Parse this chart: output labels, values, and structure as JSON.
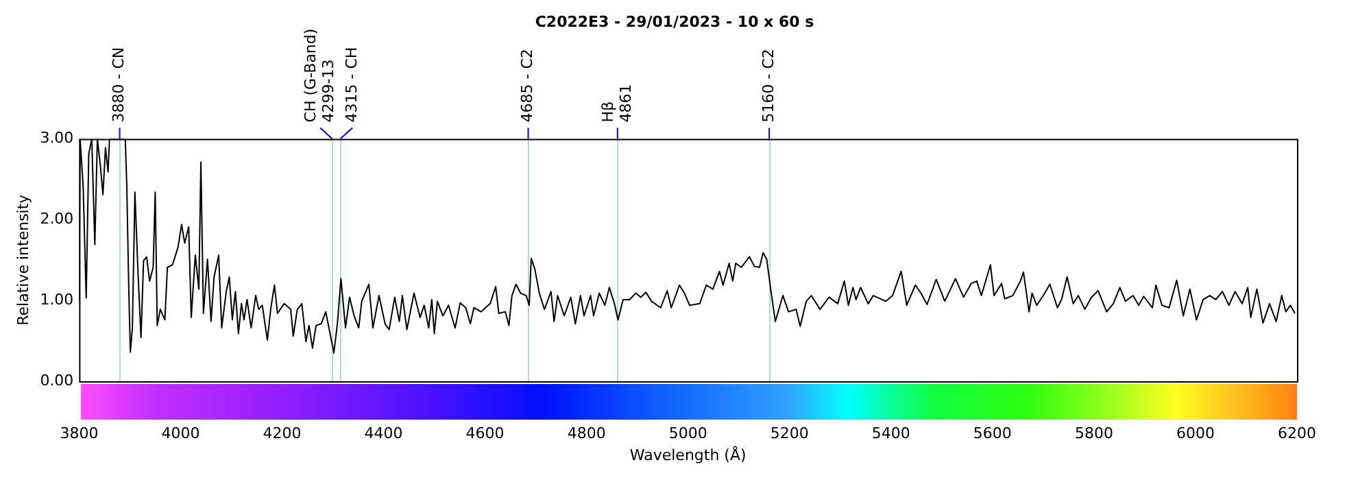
{
  "chart_data": {
    "type": "line",
    "title": "C2022E3 - 29/01/2023 - 10 x 60 s",
    "xlabel": "Wavelength (Å)",
    "ylabel": "Relative intensity",
    "xlim": [
      3800,
      6200
    ],
    "xticks": [
      3800,
      4000,
      4200,
      4400,
      4600,
      4800,
      5000,
      5200,
      5400,
      5600,
      5800,
      6000,
      6200
    ],
    "ylim": [
      0,
      3
    ],
    "yticks": [
      {
        "value": 0,
        "label": "0.00"
      },
      {
        "value": 1,
        "label": "1.00"
      },
      {
        "value": 2,
        "label": "2.00"
      },
      {
        "value": 3,
        "label": "3.00"
      }
    ],
    "grid": false,
    "legend": false,
    "ref_lines": [
      {
        "axis": "x",
        "value": 3880,
        "label": "3880 - CN",
        "color": "#add8e6"
      },
      {
        "axis": "x",
        "value": 4299,
        "label": "CH (G-Band)\n4299-13",
        "color": "#add8e6"
      },
      {
        "axis": "x",
        "value": 4315,
        "label": "4315 - CH",
        "color": "#add8e6"
      },
      {
        "axis": "x",
        "value": 4685,
        "label": "4685 - C2",
        "color": "#add8e6"
      },
      {
        "axis": "x",
        "value": 4861,
        "label": "Hβ\n4861",
        "color": "#add8e6"
      },
      {
        "axis": "x",
        "value": 5160,
        "label": "5160 - C2",
        "color": "#add8e6"
      }
    ],
    "series": [
      {
        "color": "#000000",
        "x": [
          3800,
          3802,
          3808,
          3814,
          3819,
          3825,
          3831,
          3836,
          3842,
          3847,
          3852,
          3857,
          3860,
          3891,
          3894,
          3898,
          3901,
          3905,
          3910,
          3916,
          3922,
          3927,
          3933,
          3939,
          3946,
          3950,
          3954,
          3960,
          3969,
          3974,
          3984,
          3995,
          4002,
          4008,
          4016,
          4021,
          4029,
          4036,
          4040,
          4045,
          4053,
          4060,
          4066,
          4075,
          4081,
          4090,
          4096,
          4102,
          4108,
          4114,
          4120,
          4125,
          4131,
          4139,
          4148,
          4154,
          4161,
          4171,
          4178,
          4185,
          4191,
          4204,
          4217,
          4222,
          4230,
          4239,
          4247,
          4253,
          4260,
          4267,
          4277,
          4286,
          4293,
          4302,
          4309,
          4316,
          4325,
          4333,
          4342,
          4351,
          4357,
          4371,
          4379,
          4391,
          4403,
          4411,
          4422,
          4431,
          4437,
          4446,
          4460,
          4472,
          4480,
          4489,
          4495,
          4500,
          4506,
          4517,
          4528,
          4541,
          4551,
          4562,
          4571,
          4578,
          4592,
          4610,
          4621,
          4627,
          4640,
          4647,
          4653,
          4661,
          4670,
          4681,
          4687,
          4691,
          4698,
          4707,
          4717,
          4730,
          4736,
          4743,
          4756,
          4769,
          4778,
          4788,
          4795,
          4808,
          4814,
          4825,
          4836,
          4845,
          4855,
          4862,
          4872,
          4885,
          4897,
          4907,
          4917,
          4928,
          4946,
          4959,
          4967,
          4983,
          4993,
          5003,
          5023,
          5036,
          5049,
          5062,
          5069,
          5081,
          5088,
          5094,
          5105,
          5121,
          5131,
          5141,
          5148,
          5155,
          5164,
          5172,
          5187,
          5198,
          5213,
          5221,
          5233,
          5243,
          5260,
          5278,
          5295,
          5308,
          5316,
          5325,
          5331,
          5340,
          5355,
          5365,
          5390,
          5403,
          5420,
          5431,
          5448,
          5459,
          5471,
          5489,
          5506,
          5527,
          5543,
          5558,
          5569,
          5578,
          5596,
          5603,
          5618,
          5624,
          5640,
          5655,
          5661,
          5672,
          5678,
          5687,
          5700,
          5713,
          5728,
          5736,
          5747,
          5759,
          5769,
          5782,
          5795,
          5808,
          5825,
          5838,
          5851,
          5862,
          5877,
          5888,
          5898,
          5915,
          5922,
          5934,
          5948,
          5963,
          5976,
          5989,
          6002,
          6015,
          6028,
          6040,
          6053,
          6066,
          6078,
          6092,
          6103,
          6109,
          6121,
          6133,
          6146,
          6159,
          6170,
          6178,
          6187,
          6196
        ],
        "values": [
          0.99,
          3.0,
          2.41,
          1.03,
          2.81,
          3.0,
          1.69,
          3.0,
          2.66,
          2.31,
          2.89,
          2.59,
          3.0,
          3.0,
          2.41,
          1.11,
          0.36,
          0.66,
          2.34,
          1.36,
          0.54,
          1.49,
          1.54,
          1.24,
          1.41,
          2.34,
          0.69,
          0.89,
          0.76,
          1.41,
          1.44,
          1.66,
          1.94,
          1.71,
          1.91,
          0.79,
          1.56,
          1.14,
          2.71,
          0.84,
          1.51,
          0.74,
          1.29,
          1.56,
          0.66,
          1.11,
          1.29,
          0.76,
          1.11,
          0.59,
          0.96,
          0.76,
          1.01,
          0.66,
          1.06,
          0.89,
          0.94,
          0.51,
          0.91,
          1.19,
          0.84,
          0.96,
          0.89,
          0.56,
          0.89,
          0.96,
          0.49,
          0.69,
          0.41,
          0.69,
          0.71,
          0.86,
          0.64,
          0.35,
          0.71,
          1.27,
          0.66,
          1.04,
          0.81,
          0.66,
          0.99,
          1.2,
          0.66,
          1.06,
          0.71,
          0.64,
          1.04,
          0.74,
          1.06,
          0.64,
          1.09,
          0.79,
          0.94,
          0.66,
          1.01,
          0.59,
          0.99,
          0.81,
          0.94,
          0.66,
          0.97,
          0.91,
          0.71,
          0.91,
          0.86,
          0.96,
          1.17,
          0.84,
          0.86,
          0.69,
          1.06,
          1.2,
          1.09,
          1.06,
          0.94,
          1.52,
          1.39,
          1.09,
          0.89,
          1.11,
          0.74,
          1.06,
          0.81,
          1.04,
          0.71,
          1.06,
          0.81,
          1.06,
          0.81,
          1.09,
          0.94,
          1.16,
          0.96,
          0.76,
          1.01,
          1.01,
          1.09,
          1.04,
          1.1,
          0.99,
          0.91,
          1.12,
          0.91,
          1.19,
          1.09,
          0.94,
          0.96,
          1.19,
          1.14,
          1.36,
          1.19,
          1.46,
          1.24,
          1.46,
          1.41,
          1.54,
          1.42,
          1.41,
          1.59,
          1.51,
          1.09,
          0.74,
          1.06,
          0.86,
          0.89,
          0.68,
          0.99,
          1.06,
          0.89,
          1.04,
          0.96,
          1.24,
          0.94,
          1.16,
          1.01,
          1.16,
          0.96,
          1.06,
          0.99,
          1.06,
          1.36,
          0.94,
          1.19,
          1.09,
          0.95,
          1.26,
          0.99,
          1.27,
          1.04,
          1.21,
          1.24,
          1.06,
          1.44,
          1.06,
          1.21,
          1.02,
          1.06,
          1.24,
          1.35,
          0.86,
          1.09,
          0.94,
          1.06,
          1.2,
          0.91,
          1.01,
          1.29,
          0.96,
          1.06,
          0.89,
          1.04,
          1.12,
          0.86,
          0.96,
          1.16,
          0.99,
          1.06,
          0.94,
          1.05,
          0.91,
          1.19,
          0.94,
          0.91,
          1.25,
          0.81,
          1.14,
          0.76,
          1.01,
          1.06,
          1.01,
          1.11,
          0.94,
          1.11,
          0.96,
          1.16,
          0.79,
          1.14,
          0.72,
          0.96,
          0.74,
          1.06,
          0.86,
          0.94,
          0.84
        ]
      }
    ]
  }
}
